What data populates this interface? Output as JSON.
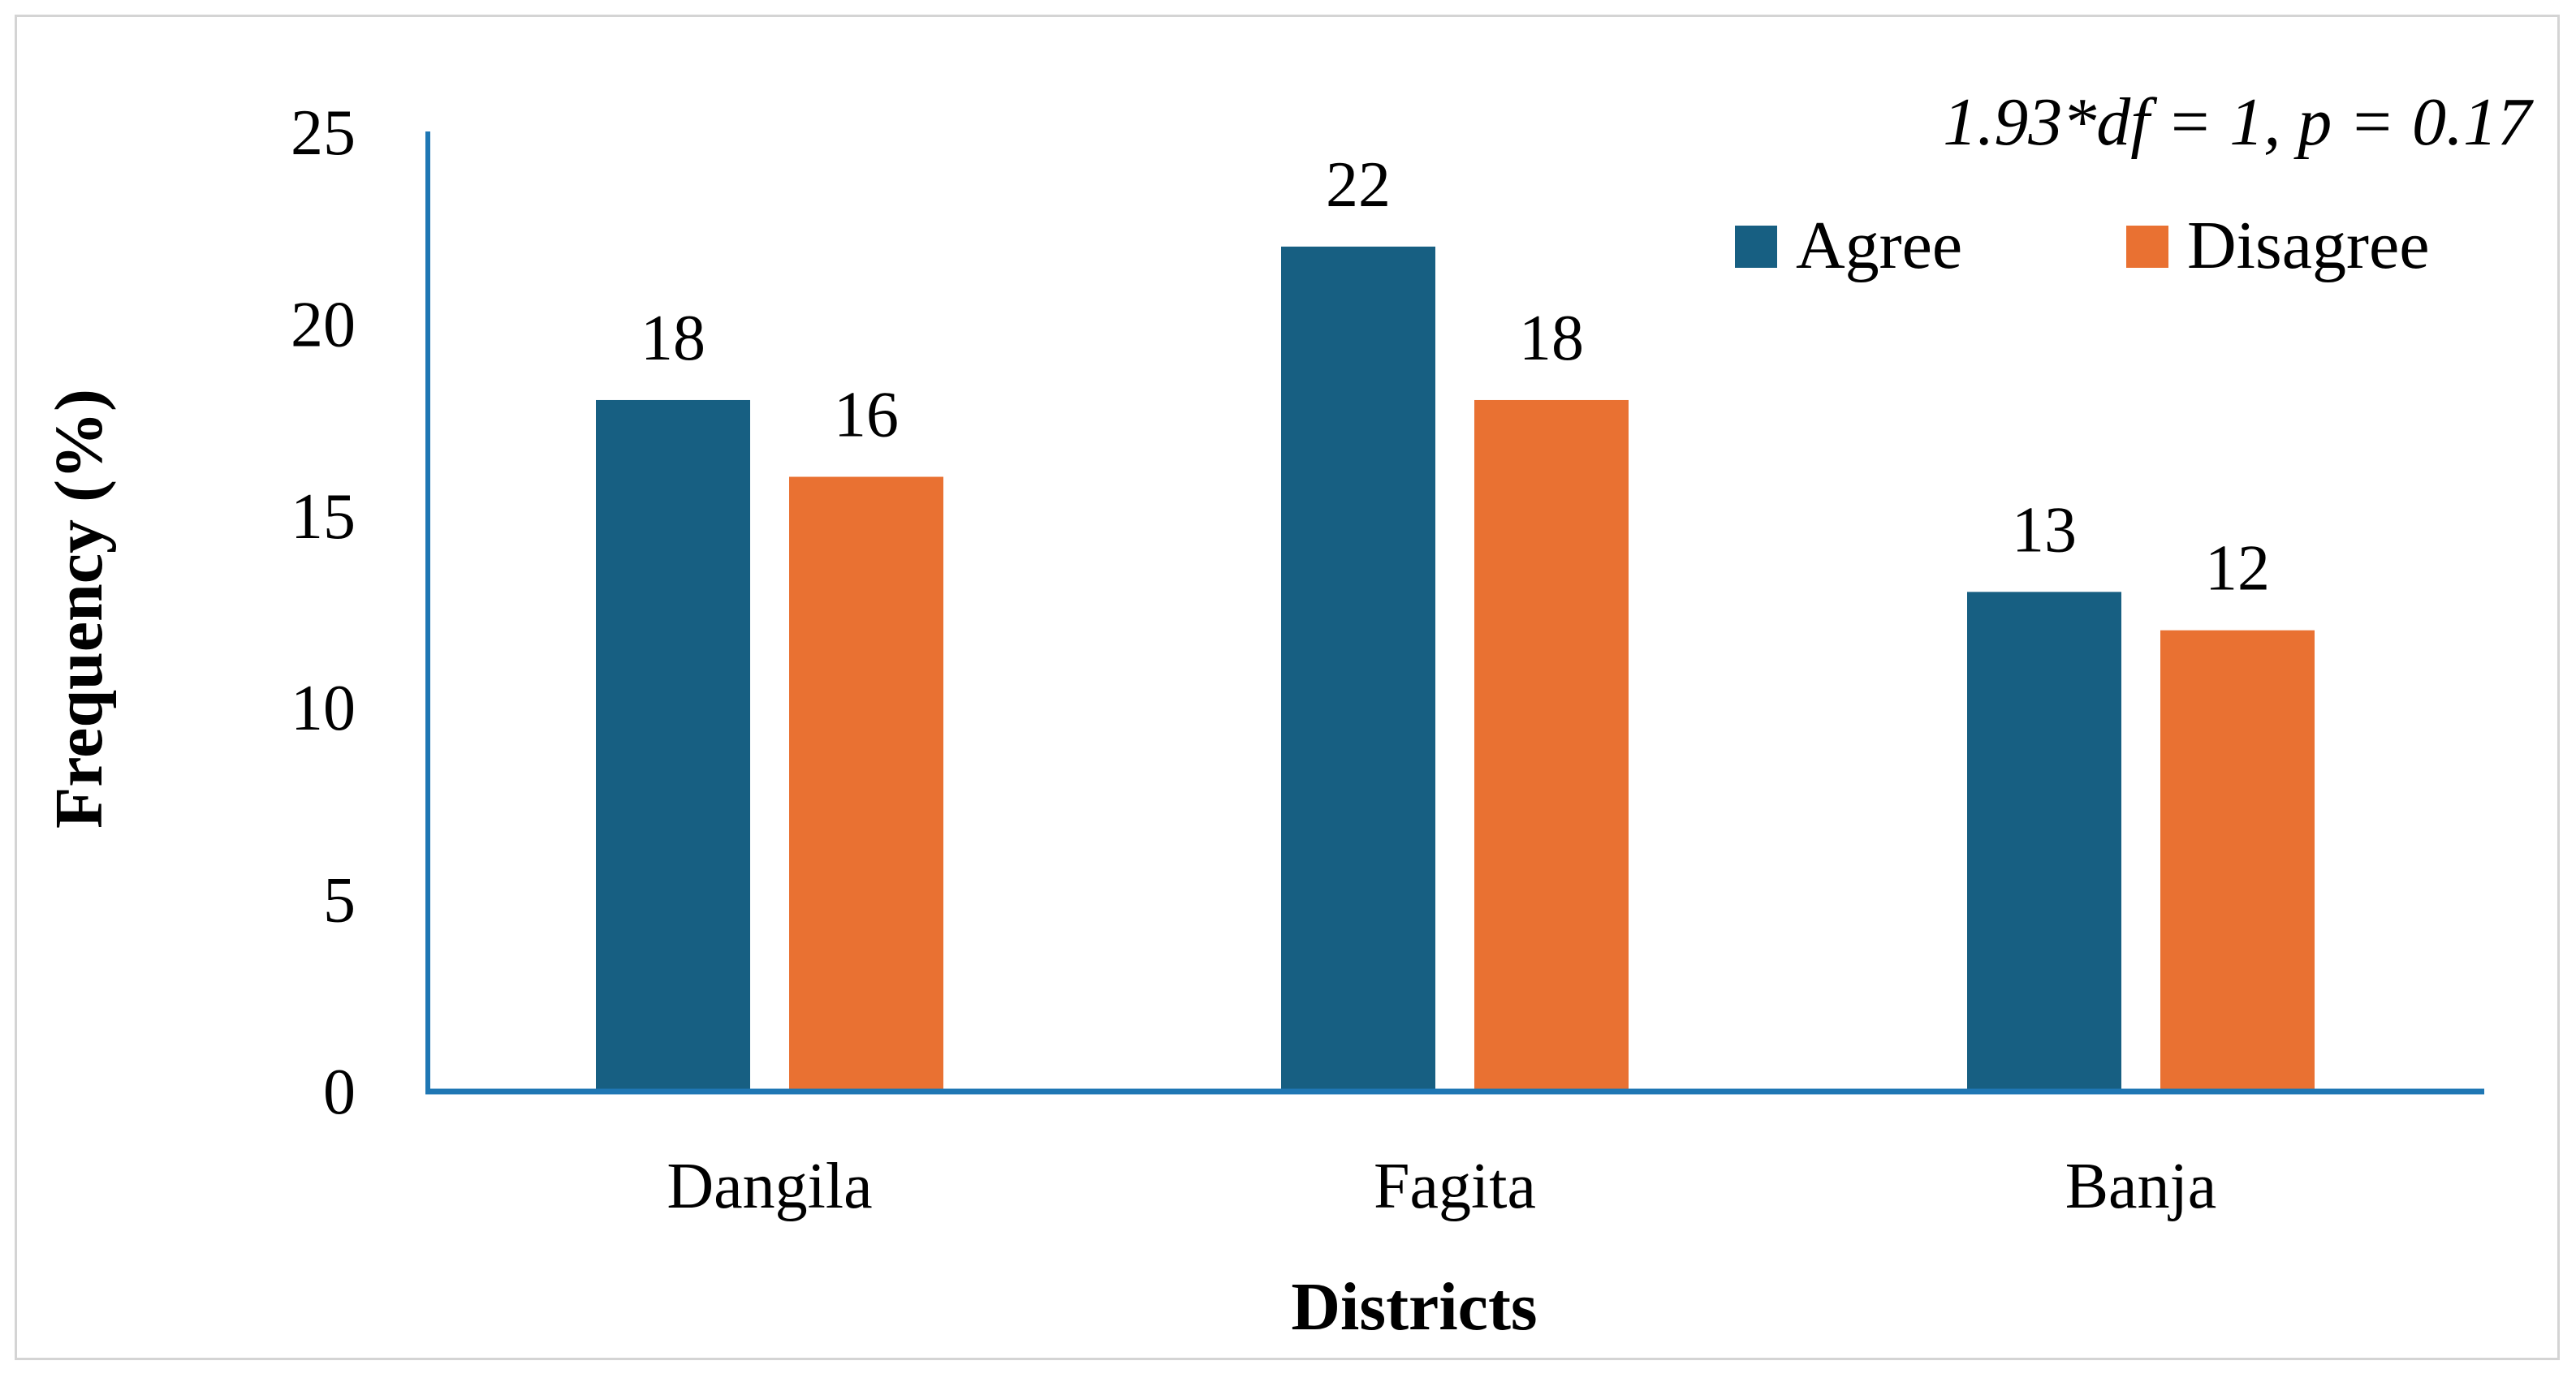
{
  "chart_data": {
    "type": "bar",
    "title": "",
    "annotation": "1.93*df = 1, p = 0.17",
    "xlabel": "Districts",
    "ylabel": "Frequency (%)",
    "categories": [
      "Dangila",
      "Fagita",
      "Banja"
    ],
    "series": [
      {
        "name": "Agree",
        "color": "#175f82",
        "values": [
          18,
          22,
          13
        ]
      },
      {
        "name": "Disagree",
        "color": "#e97132",
        "values": [
          16,
          18,
          12
        ]
      }
    ],
    "yticks": [
      0,
      5,
      10,
      15,
      20,
      25
    ],
    "ylim": [
      0,
      25
    ],
    "axis_color": "#1f77b4",
    "legend_position": "top-right",
    "grid": false
  }
}
